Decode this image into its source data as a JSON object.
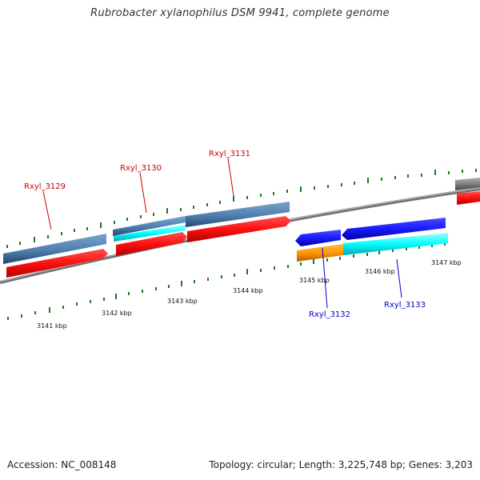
{
  "title": "Rubrobacter xylanophilus DSM 9941, complete genome",
  "footer": {
    "accession": "Accession: NC_008148",
    "summary": "Topology: circular; Length: 3,225,748 bp; Genes: 3,203"
  },
  "colors": {
    "backbone": "#8c8c8c",
    "tick": "#1e7a1e",
    "forward_cds": "#ff1a1a",
    "forward_gene": "#4f7fb0",
    "reverse_cds": "#1a1aff",
    "reverse_gene": "#00ffff",
    "orange_feature": "#ff9900",
    "forward_label": "#cc0000",
    "reverse_label": "#0000cc"
  },
  "kbp_labels": [
    "3141 kbp",
    "3142 kbp",
    "3143 kbp",
    "3144 kbp",
    "3145 kbp",
    "3146 kbp",
    "3147 kbp"
  ],
  "gene_labels": [
    {
      "name": "Rxyl_3129",
      "strand": "forward"
    },
    {
      "name": "Rxyl_3130",
      "strand": "forward"
    },
    {
      "name": "Rxyl_3131",
      "strand": "forward"
    },
    {
      "name": "Rxyl_3132",
      "strand": "reverse"
    },
    {
      "name": "Rxyl_3133",
      "strand": "reverse"
    }
  ]
}
